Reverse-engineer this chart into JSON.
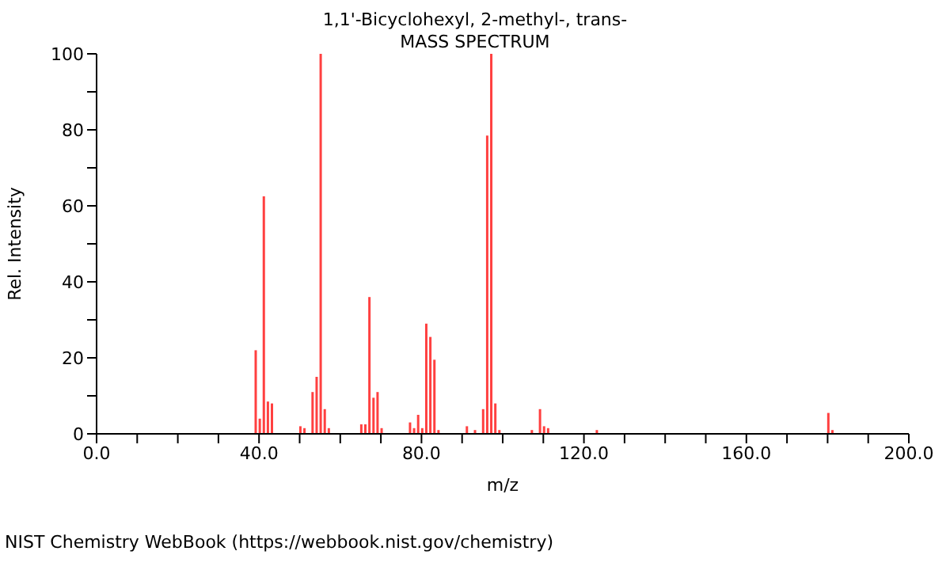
{
  "chart_data": {
    "type": "bar",
    "title": "1,1'-Bicyclohexyl, 2-methyl-, trans-",
    "subtitle": "MASS SPECTRUM",
    "xlabel": "m/z",
    "ylabel": "Rel. Intensity",
    "x": [
      39,
      40,
      41,
      42,
      43,
      50,
      51,
      53,
      54,
      55,
      56,
      57,
      65,
      66,
      67,
      68,
      69,
      70,
      77,
      78,
      79,
      80,
      81,
      82,
      83,
      84,
      91,
      93,
      95,
      96,
      97,
      98,
      99,
      107,
      109,
      110,
      111,
      123,
      180,
      181
    ],
    "values": [
      22,
      4,
      62.5,
      8.5,
      8,
      2,
      1.5,
      11,
      15,
      100,
      6.5,
      1.5,
      2.5,
      2.5,
      36,
      9.5,
      11,
      1.5,
      3,
      1.5,
      5,
      1.5,
      29,
      25.5,
      19.5,
      1,
      2,
      1,
      6.5,
      78.5,
      100,
      8,
      1,
      1,
      6.5,
      2,
      1.5,
      1,
      5.5,
      1
    ],
    "color": "#ff4040",
    "xlim": [
      0,
      200
    ],
    "xticks": [
      {
        "value": 0,
        "label": "0.0"
      },
      {
        "value": 10,
        "label": null
      },
      {
        "value": 20,
        "label": null
      },
      {
        "value": 30,
        "label": null
      },
      {
        "value": 40,
        "label": "40.0"
      },
      {
        "value": 50,
        "label": null
      },
      {
        "value": 60,
        "label": null
      },
      {
        "value": 70,
        "label": null
      },
      {
        "value": 80,
        "label": "80.0"
      },
      {
        "value": 90,
        "label": null
      },
      {
        "value": 100,
        "label": null
      },
      {
        "value": 110,
        "label": null
      },
      {
        "value": 120,
        "label": "120.0"
      },
      {
        "value": 130,
        "label": null
      },
      {
        "value": 140,
        "label": null
      },
      {
        "value": 150,
        "label": null
      },
      {
        "value": 160,
        "label": "160.0"
      },
      {
        "value": 170,
        "label": null
      },
      {
        "value": 180,
        "label": null
      },
      {
        "value": 190,
        "label": null
      },
      {
        "value": 200,
        "label": "200.0"
      }
    ],
    "ylim": [
      0,
      100
    ],
    "yticks": [
      0,
      {
        "value": 10,
        "label": null
      },
      20,
      {
        "value": 30,
        "label": null
      },
      40,
      {
        "value": 50,
        "label": null
      },
      60,
      {
        "value": 70,
        "label": null
      },
      80,
      {
        "value": 90,
        "label": null
      },
      100
    ],
    "grid": false,
    "annotations": [
      "NIST Chemistry WebBook (https://webbook.nist.gov/chemistry)"
    ]
  }
}
